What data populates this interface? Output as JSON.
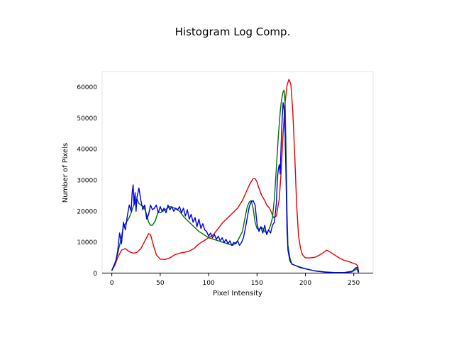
{
  "chart_data": {
    "type": "line",
    "title": "Histogram Log Comp.",
    "xlabel": "Pixel Intensity",
    "ylabel": "Number of Pixels",
    "xlim": [
      -10,
      270
    ],
    "ylim": [
      0,
      65000
    ],
    "xticks": [
      0,
      50,
      100,
      150,
      200,
      250
    ],
    "yticks": [
      0,
      10000,
      20000,
      30000,
      40000,
      50000,
      60000
    ],
    "grid": false,
    "series": [
      {
        "color": "#e00000",
        "x": [
          0,
          3,
          6,
          10,
          14,
          18,
          22,
          26,
          30,
          35,
          38,
          40,
          43,
          46,
          50,
          55,
          60,
          65,
          70,
          75,
          80,
          85,
          90,
          95,
          100,
          105,
          110,
          115,
          120,
          125,
          130,
          135,
          140,
          143,
          146,
          148,
          150,
          152,
          155,
          158,
          160,
          163,
          165,
          167,
          170,
          173,
          175,
          177,
          179,
          181,
          183,
          185,
          187,
          189,
          191,
          193,
          195,
          197,
          200,
          205,
          210,
          215,
          220,
          222,
          225,
          230,
          235,
          240,
          245,
          250,
          252,
          254,
          255
        ],
        "values": [
          1000,
          2500,
          5000,
          7500,
          8000,
          7000,
          6500,
          6800,
          8000,
          11000,
          12800,
          12500,
          9000,
          6000,
          4600,
          4500,
          5000,
          6000,
          6500,
          6800,
          7200,
          8000,
          9500,
          10500,
          11500,
          12500,
          14500,
          16500,
          18000,
          19500,
          21000,
          23500,
          27000,
          29000,
          30500,
          30500,
          29500,
          27500,
          25000,
          23500,
          22000,
          21000,
          19500,
          18000,
          18500,
          24000,
          33000,
          45000,
          55000,
          60500,
          62500,
          61000,
          52000,
          38000,
          22000,
          12000,
          8000,
          6000,
          5000,
          5000,
          5200,
          6000,
          7000,
          7500,
          7000,
          6000,
          5000,
          4200,
          3800,
          3200,
          3000,
          2500,
          500
        ]
      },
      {
        "color": "#007000",
        "x": [
          0,
          3,
          5,
          8,
          10,
          12,
          15,
          18,
          20,
          22,
          24,
          26,
          28,
          30,
          33,
          36,
          38,
          40,
          42,
          45,
          48,
          50,
          55,
          60,
          65,
          70,
          75,
          80,
          85,
          90,
          95,
          100,
          105,
          110,
          115,
          120,
          125,
          130,
          135,
          138,
          140,
          142,
          144,
          146,
          148,
          150,
          152,
          154,
          156,
          158,
          160,
          162,
          164,
          166,
          168,
          170,
          172,
          174,
          175,
          176,
          177,
          178,
          179,
          180,
          181,
          182,
          184,
          186,
          190,
          195,
          200,
          210,
          220,
          230,
          240,
          250,
          253,
          255
        ],
        "values": [
          800,
          3000,
          5000,
          9000,
          12000,
          15000,
          16500,
          18000,
          19500,
          21500,
          23000,
          24000,
          22500,
          22000,
          21500,
          19000,
          16500,
          15500,
          15500,
          17000,
          20000,
          19500,
          20500,
          21500,
          21000,
          20000,
          18000,
          16500,
          15000,
          13500,
          12500,
          11500,
          11000,
          10500,
          10000,
          9500,
          9000,
          10500,
          13500,
          18500,
          21500,
          23000,
          23500,
          21000,
          16500,
          14500,
          14000,
          15000,
          14500,
          13500,
          13000,
          14000,
          15500,
          18000,
          24000,
          34000,
          44000,
          52000,
          55000,
          57000,
          58500,
          59000,
          55000,
          40000,
          20000,
          9000,
          5000,
          3000,
          2500,
          2000,
          1500,
          800,
          500,
          300,
          300,
          800,
          1500,
          300
        ]
      },
      {
        "color": "#0000e0",
        "x": [
          0,
          2,
          4,
          6,
          8,
          10,
          12,
          14,
          16,
          18,
          20,
          21,
          22,
          23,
          24,
          25,
          26,
          28,
          30,
          32,
          34,
          36,
          38,
          40,
          42,
          44,
          46,
          48,
          50,
          52,
          54,
          56,
          58,
          60,
          62,
          64,
          66,
          68,
          70,
          72,
          74,
          76,
          78,
          80,
          82,
          84,
          86,
          88,
          90,
          92,
          94,
          96,
          98,
          100,
          102,
          104,
          106,
          108,
          110,
          112,
          114,
          116,
          118,
          120,
          122,
          124,
          126,
          128,
          130,
          132,
          134,
          136,
          138,
          140,
          142,
          144,
          146,
          148,
          150,
          152,
          154,
          156,
          158,
          160,
          162,
          164,
          166,
          168,
          170,
          171,
          172,
          173,
          174,
          175,
          176,
          177,
          178,
          179,
          180,
          181,
          182,
          184,
          186,
          190,
          195,
          200,
          210,
          220,
          230,
          240,
          248,
          250,
          252,
          254,
          255
        ],
        "values": [
          1000,
          2500,
          4000,
          7000,
          13000,
          9500,
          16500,
          14000,
          18500,
          22000,
          20000,
          26000,
          28500,
          22000,
          26000,
          20000,
          24500,
          27500,
          23500,
          20500,
          22000,
          17500,
          19000,
          22000,
          20500,
          21000,
          22000,
          19500,
          21500,
          20000,
          21000,
          19500,
          22000,
          20500,
          21500,
          20000,
          21000,
          20500,
          21500,
          19500,
          21000,
          18500,
          20500,
          17500,
          19000,
          16500,
          18000,
          15000,
          17500,
          14500,
          16000,
          14000,
          13500,
          12000,
          13000,
          11500,
          12500,
          11000,
          12000,
          10500,
          11500,
          10000,
          11000,
          9500,
          10500,
          9000,
          10000,
          9500,
          10500,
          9000,
          10000,
          11500,
          14500,
          18000,
          21500,
          23000,
          23500,
          22000,
          16000,
          13500,
          15000,
          13000,
          15500,
          12500,
          14000,
          13000,
          15500,
          16500,
          22500,
          30000,
          33500,
          35000,
          32000,
          42000,
          50000,
          55000,
          53000,
          45000,
          31000,
          14000,
          7500,
          4000,
          3000,
          2500,
          1800,
          1500,
          800,
          400,
          250,
          250,
          500,
          1200,
          1800,
          2000,
          300
        ]
      }
    ]
  }
}
